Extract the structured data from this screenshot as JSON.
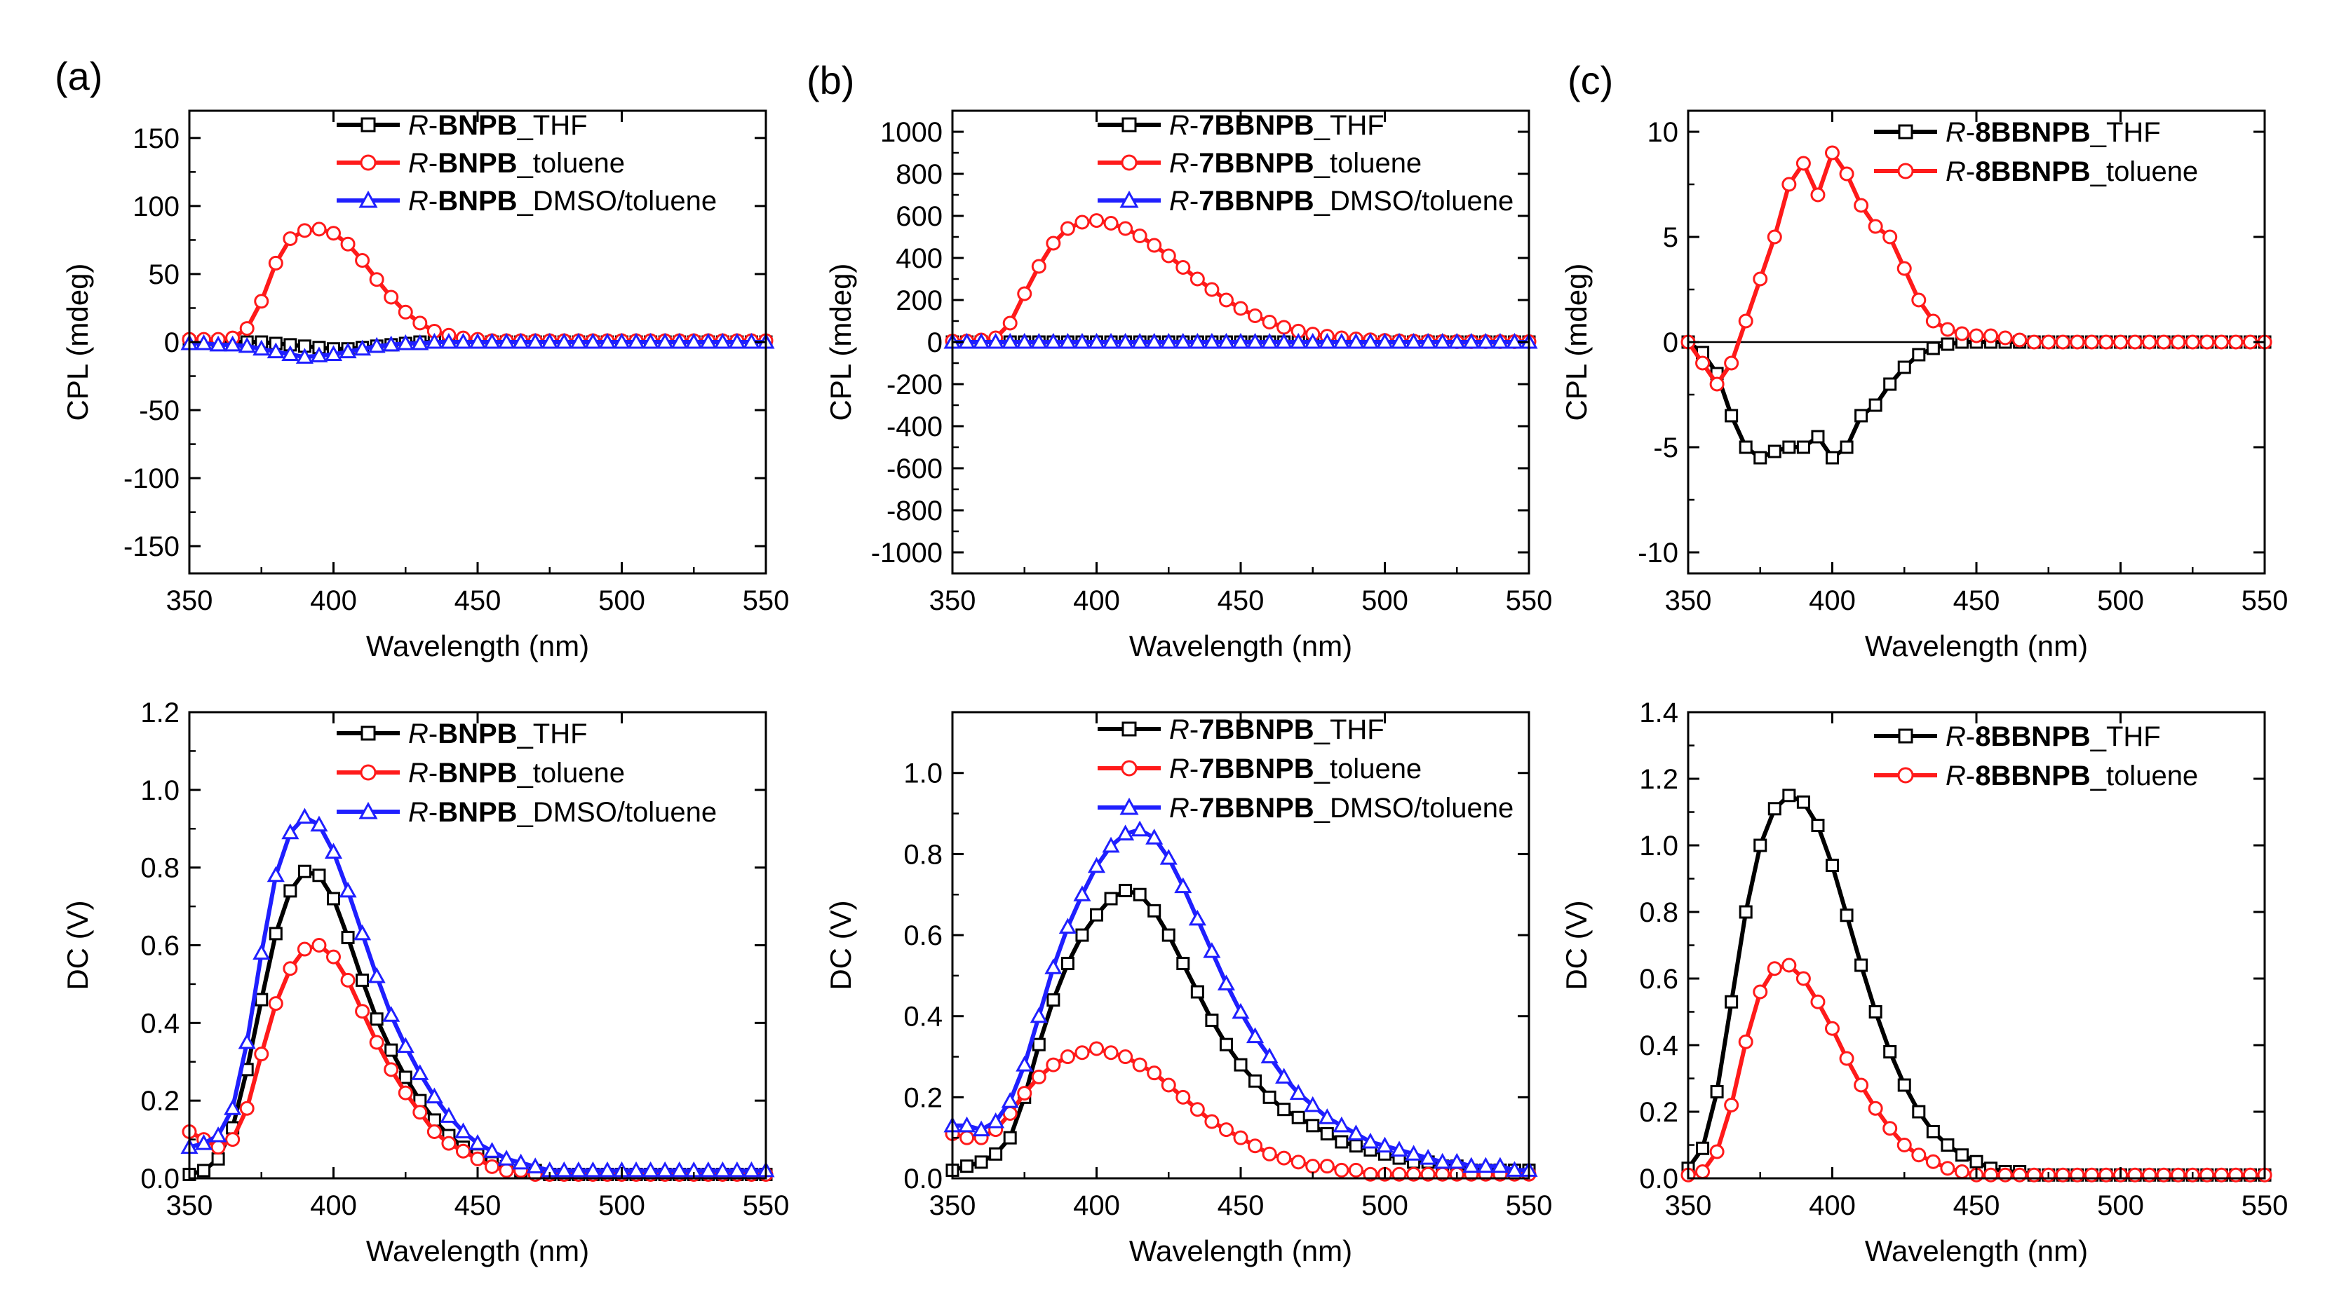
{
  "figure": {
    "panels": [
      {
        "id": "a",
        "label": "(a)"
      },
      {
        "id": "b",
        "label": "(b)"
      },
      {
        "id": "c",
        "label": "(c)"
      }
    ]
  },
  "colors": {
    "black": "#000000",
    "red": "#ff1a1a",
    "blue": "#1f1fff"
  },
  "chart_data": [
    {
      "id": "a-cpl",
      "panel_label": "(a)",
      "type": "line",
      "xlabel": "Wavelength (nm)",
      "ylabel": "CPL (mdeg)",
      "xlim": [
        350,
        550
      ],
      "ylim": [
        -170,
        170
      ],
      "xticks": [
        350,
        400,
        450,
        500,
        550
      ],
      "yticks": [
        -150,
        -100,
        -50,
        0,
        50,
        100,
        150
      ],
      "x_start": 350,
      "x_step": 5,
      "zero_line": false,
      "series": [
        {
          "name_prefix": "R-",
          "name_bold": "BNPB",
          "name_suffix": "_THF",
          "color": "black",
          "marker": "square",
          "values": [
            0,
            0,
            0,
            0,
            0,
            0,
            -1,
            -2,
            -3,
            -4,
            -5,
            -5,
            -4,
            -3,
            -2,
            -1,
            0,
            0,
            0,
            0,
            0,
            0,
            0,
            0,
            0,
            0,
            0,
            0,
            0,
            0,
            0,
            0,
            0,
            0,
            0,
            0,
            0,
            0,
            0,
            0,
            0
          ]
        },
        {
          "name_prefix": "R-",
          "name_bold": "BNPB",
          "name_suffix": "_toluene",
          "color": "red",
          "marker": "circle",
          "values": [
            2,
            2,
            2,
            3,
            10,
            30,
            58,
            76,
            82,
            83,
            80,
            72,
            60,
            46,
            33,
            22,
            14,
            8,
            5,
            3,
            2,
            1,
            1,
            1,
            1,
            1,
            1,
            1,
            1,
            1,
            1,
            1,
            1,
            1,
            1,
            1,
            1,
            1,
            1,
            1,
            1
          ]
        },
        {
          "name_prefix": "R-",
          "name_bold": "BNPB",
          "name_suffix": "_DMSO/toluene",
          "color": "blue",
          "marker": "triangle",
          "values": [
            -1,
            -1,
            -2,
            -2,
            -3,
            -5,
            -7,
            -9,
            -11,
            -10,
            -9,
            -7,
            -5,
            -3,
            -2,
            -1,
            -1,
            0,
            0,
            0,
            0,
            0,
            0,
            0,
            0,
            0,
            0,
            0,
            0,
            0,
            0,
            0,
            0,
            0,
            0,
            0,
            0,
            0,
            0,
            0,
            0
          ]
        }
      ]
    },
    {
      "id": "b-cpl",
      "panel_label": "(b)",
      "type": "line",
      "xlabel": "Wavelength (nm)",
      "ylabel": "CPL (mdeg)",
      "xlim": [
        350,
        550
      ],
      "ylim": [
        -1100,
        1100
      ],
      "xticks": [
        350,
        400,
        450,
        500,
        550
      ],
      "yticks": [
        -1000,
        -800,
        -600,
        -400,
        -200,
        0,
        200,
        400,
        600,
        800,
        1000
      ],
      "x_start": 350,
      "x_step": 5,
      "zero_line": false,
      "series": [
        {
          "name_prefix": "R-",
          "name_bold": "7BBNPB",
          "name_suffix": "_THF",
          "color": "black",
          "marker": "square",
          "values": [
            0,
            0,
            0,
            0,
            0,
            0,
            0,
            0,
            0,
            0,
            0,
            0,
            0,
            0,
            0,
            0,
            0,
            0,
            0,
            0,
            0,
            0,
            0,
            0,
            0,
            0,
            0,
            0,
            0,
            0,
            0,
            0,
            0,
            0,
            0,
            0,
            0,
            0,
            0,
            0,
            0
          ]
        },
        {
          "name_prefix": "R-",
          "name_bold": "7BBNPB",
          "name_suffix": "_toluene",
          "color": "red",
          "marker": "circle",
          "values": [
            5,
            5,
            10,
            20,
            90,
            230,
            360,
            470,
            540,
            570,
            578,
            565,
            540,
            505,
            460,
            410,
            355,
            300,
            250,
            200,
            160,
            125,
            95,
            70,
            52,
            38,
            28,
            20,
            15,
            11,
            8,
            6,
            5,
            4,
            3,
            2,
            2,
            2,
            2,
            2,
            2
          ]
        },
        {
          "name_prefix": "R-",
          "name_bold": "7BBNPB",
          "name_suffix": "_DMSO/toluene",
          "color": "blue",
          "marker": "triangle",
          "values": [
            0,
            0,
            0,
            0,
            0,
            0,
            0,
            0,
            0,
            0,
            0,
            0,
            0,
            0,
            0,
            0,
            0,
            0,
            0,
            0,
            0,
            0,
            0,
            0,
            0,
            0,
            0,
            0,
            0,
            0,
            0,
            0,
            0,
            0,
            0,
            0,
            0,
            0,
            0,
            0,
            0
          ]
        }
      ]
    },
    {
      "id": "c-cpl",
      "panel_label": "(c)",
      "type": "line",
      "xlabel": "Wavelength (nm)",
      "ylabel": "CPL (mdeg)",
      "xlim": [
        350,
        550
      ],
      "ylim": [
        -11,
        11
      ],
      "xticks": [
        350,
        400,
        450,
        500,
        550
      ],
      "yticks": [
        -10,
        -5,
        0,
        5,
        10
      ],
      "x_start": 350,
      "x_step": 5,
      "zero_line": true,
      "series": [
        {
          "name_prefix": "R-",
          "name_bold": "8BBNPB",
          "name_suffix": "_THF",
          "color": "black",
          "marker": "square",
          "values": [
            0,
            -0.5,
            -1.5,
            -3.5,
            -5,
            -5.5,
            -5.2,
            -5,
            -5,
            -4.5,
            -5.5,
            -5,
            -3.5,
            -3,
            -2,
            -1.2,
            -0.6,
            -0.3,
            -0.1,
            0,
            0,
            0,
            0,
            0,
            0,
            0,
            0,
            0,
            0,
            0,
            0,
            0,
            0,
            0,
            0,
            0,
            0,
            0,
            0,
            0,
            0
          ]
        },
        {
          "name_prefix": "R-",
          "name_bold": "8BBNPB",
          "name_suffix": "_toluene",
          "color": "red",
          "marker": "circle",
          "values": [
            0,
            -1,
            -2,
            -1,
            1,
            3,
            5,
            7.5,
            8.5,
            7,
            9,
            8,
            6.5,
            5.5,
            5,
            3.5,
            2,
            1,
            0.6,
            0.4,
            0.3,
            0.3,
            0.2,
            0.1,
            0,
            0,
            0,
            0,
            0,
            0,
            0,
            0,
            0,
            0,
            0,
            0,
            0,
            0,
            0,
            0,
            0
          ]
        }
      ]
    },
    {
      "id": "a-dc",
      "type": "line",
      "xlabel": "Wavelength (nm)",
      "ylabel": "DC (V)",
      "xlim": [
        350,
        550
      ],
      "ylim": [
        0,
        1.2
      ],
      "xticks": [
        350,
        400,
        450,
        500,
        550
      ],
      "yticks": [
        0.0,
        0.2,
        0.4,
        0.6,
        0.8,
        1.0,
        1.2
      ],
      "ytick_labels": [
        "0.0",
        "0.2",
        "0.4",
        "0.6",
        "0.8",
        "1.0",
        "1.2"
      ],
      "x_start": 350,
      "x_step": 5,
      "zero_line": false,
      "series": [
        {
          "name_prefix": "R-",
          "name_bold": "BNPB",
          "name_suffix": "_THF",
          "color": "black",
          "marker": "square",
          "values": [
            0.01,
            0.02,
            0.05,
            0.13,
            0.28,
            0.46,
            0.63,
            0.74,
            0.79,
            0.78,
            0.72,
            0.62,
            0.51,
            0.41,
            0.33,
            0.26,
            0.2,
            0.15,
            0.11,
            0.08,
            0.06,
            0.04,
            0.03,
            0.02,
            0.02,
            0.01,
            0.01,
            0.01,
            0.01,
            0.01,
            0.01,
            0.01,
            0.01,
            0.01,
            0.01,
            0.01,
            0.01,
            0.01,
            0.01,
            0.01,
            0.01
          ]
        },
        {
          "name_prefix": "R-",
          "name_bold": "BNPB",
          "name_suffix": "_toluene",
          "color": "red",
          "marker": "circle",
          "values": [
            0.12,
            0.1,
            0.08,
            0.1,
            0.18,
            0.32,
            0.45,
            0.54,
            0.59,
            0.6,
            0.57,
            0.51,
            0.43,
            0.35,
            0.28,
            0.22,
            0.17,
            0.12,
            0.09,
            0.07,
            0.05,
            0.03,
            0.02,
            0.02,
            0.01,
            0.01,
            0.01,
            0.01,
            0.01,
            0.01,
            0.01,
            0.01,
            0.01,
            0.01,
            0.01,
            0.01,
            0.01,
            0.01,
            0.01,
            0.01,
            0.01
          ]
        },
        {
          "name_prefix": "R-",
          "name_bold": "BNPB",
          "name_suffix": "_DMSO/toluene",
          "color": "blue",
          "marker": "triangle",
          "values": [
            0.08,
            0.09,
            0.11,
            0.18,
            0.35,
            0.58,
            0.78,
            0.89,
            0.93,
            0.91,
            0.84,
            0.74,
            0.63,
            0.52,
            0.42,
            0.34,
            0.27,
            0.21,
            0.16,
            0.12,
            0.09,
            0.07,
            0.05,
            0.04,
            0.03,
            0.02,
            0.02,
            0.02,
            0.02,
            0.02,
            0.02,
            0.02,
            0.02,
            0.02,
            0.02,
            0.02,
            0.02,
            0.02,
            0.02,
            0.02,
            0.02
          ]
        }
      ]
    },
    {
      "id": "b-dc",
      "type": "line",
      "xlabel": "Wavelength (nm)",
      "ylabel": "DC (V)",
      "xlim": [
        350,
        550
      ],
      "ylim": [
        0,
        1.15
      ],
      "xticks": [
        350,
        400,
        450,
        500,
        550
      ],
      "yticks": [
        0.0,
        0.2,
        0.4,
        0.6,
        0.8,
        1.0
      ],
      "ytick_labels": [
        "0.0",
        "0.2",
        "0.4",
        "0.6",
        "0.8",
        "1.0"
      ],
      "x_start": 350,
      "x_step": 5,
      "zero_line": false,
      "series": [
        {
          "name_prefix": "R-",
          "name_bold": "7BBNPB",
          "name_suffix": "_THF",
          "color": "black",
          "marker": "square",
          "values": [
            0.02,
            0.03,
            0.04,
            0.06,
            0.1,
            0.2,
            0.33,
            0.44,
            0.53,
            0.6,
            0.65,
            0.69,
            0.71,
            0.7,
            0.66,
            0.6,
            0.53,
            0.46,
            0.39,
            0.33,
            0.28,
            0.24,
            0.2,
            0.17,
            0.15,
            0.13,
            0.11,
            0.09,
            0.08,
            0.07,
            0.06,
            0.05,
            0.04,
            0.04,
            0.03,
            0.03,
            0.02,
            0.02,
            0.02,
            0.02,
            0.02
          ]
        },
        {
          "name_prefix": "R-",
          "name_bold": "7BBNPB",
          "name_suffix": "_toluene",
          "color": "red",
          "marker": "circle",
          "values": [
            0.11,
            0.1,
            0.1,
            0.12,
            0.16,
            0.21,
            0.25,
            0.28,
            0.3,
            0.31,
            0.32,
            0.31,
            0.3,
            0.28,
            0.26,
            0.23,
            0.2,
            0.17,
            0.14,
            0.12,
            0.1,
            0.08,
            0.06,
            0.05,
            0.04,
            0.03,
            0.03,
            0.02,
            0.02,
            0.01,
            0.01,
            0.01,
            0.01,
            0.01,
            0.01,
            0.01,
            0.01,
            0.01,
            0.01,
            0.01,
            0.01
          ]
        },
        {
          "name_prefix": "R-",
          "name_bold": "7BBNPB",
          "name_suffix": "_DMSO/toluene",
          "color": "blue",
          "marker": "triangle",
          "values": [
            0.13,
            0.13,
            0.12,
            0.14,
            0.19,
            0.28,
            0.4,
            0.52,
            0.62,
            0.7,
            0.77,
            0.82,
            0.85,
            0.86,
            0.84,
            0.79,
            0.72,
            0.64,
            0.56,
            0.48,
            0.41,
            0.35,
            0.3,
            0.25,
            0.21,
            0.18,
            0.15,
            0.13,
            0.11,
            0.09,
            0.08,
            0.07,
            0.06,
            0.05,
            0.04,
            0.04,
            0.03,
            0.03,
            0.03,
            0.02,
            0.02
          ]
        }
      ]
    },
    {
      "id": "c-dc",
      "type": "line",
      "xlabel": "Wavelength (nm)",
      "ylabel": "DC (V)",
      "xlim": [
        350,
        550
      ],
      "ylim": [
        0,
        1.4
      ],
      "xticks": [
        350,
        400,
        450,
        500,
        550
      ],
      "yticks": [
        0.0,
        0.2,
        0.4,
        0.6,
        0.8,
        1.0,
        1.2,
        1.4
      ],
      "ytick_labels": [
        "0.0",
        "0.2",
        "0.4",
        "0.6",
        "0.8",
        "1.0",
        "1.2",
        "1.4"
      ],
      "x_start": 350,
      "x_step": 5,
      "zero_line": false,
      "series": [
        {
          "name_prefix": "R-",
          "name_bold": "8BBNPB",
          "name_suffix": "_THF",
          "color": "black",
          "marker": "square",
          "values": [
            0.03,
            0.09,
            0.26,
            0.53,
            0.8,
            1.0,
            1.11,
            1.15,
            1.13,
            1.06,
            0.94,
            0.79,
            0.64,
            0.5,
            0.38,
            0.28,
            0.2,
            0.14,
            0.1,
            0.07,
            0.05,
            0.03,
            0.02,
            0.02,
            0.01,
            0.01,
            0.01,
            0.01,
            0.01,
            0.01,
            0.01,
            0.01,
            0.01,
            0.01,
            0.01,
            0.01,
            0.01,
            0.01,
            0.01,
            0.01,
            0.01
          ]
        },
        {
          "name_prefix": "R-",
          "name_bold": "8BBNPB",
          "name_suffix": "_toluene",
          "color": "red",
          "marker": "circle",
          "values": [
            0.01,
            0.02,
            0.08,
            0.22,
            0.41,
            0.56,
            0.63,
            0.64,
            0.6,
            0.53,
            0.45,
            0.36,
            0.28,
            0.21,
            0.15,
            0.1,
            0.07,
            0.05,
            0.03,
            0.02,
            0.01,
            0.01,
            0.01,
            0.01,
            0.01,
            0.01,
            0.01,
            0.01,
            0.01,
            0.01,
            0.01,
            0.01,
            0.01,
            0.01,
            0.01,
            0.01,
            0.01,
            0.01,
            0.01,
            0.01,
            0.01
          ]
        }
      ]
    }
  ]
}
